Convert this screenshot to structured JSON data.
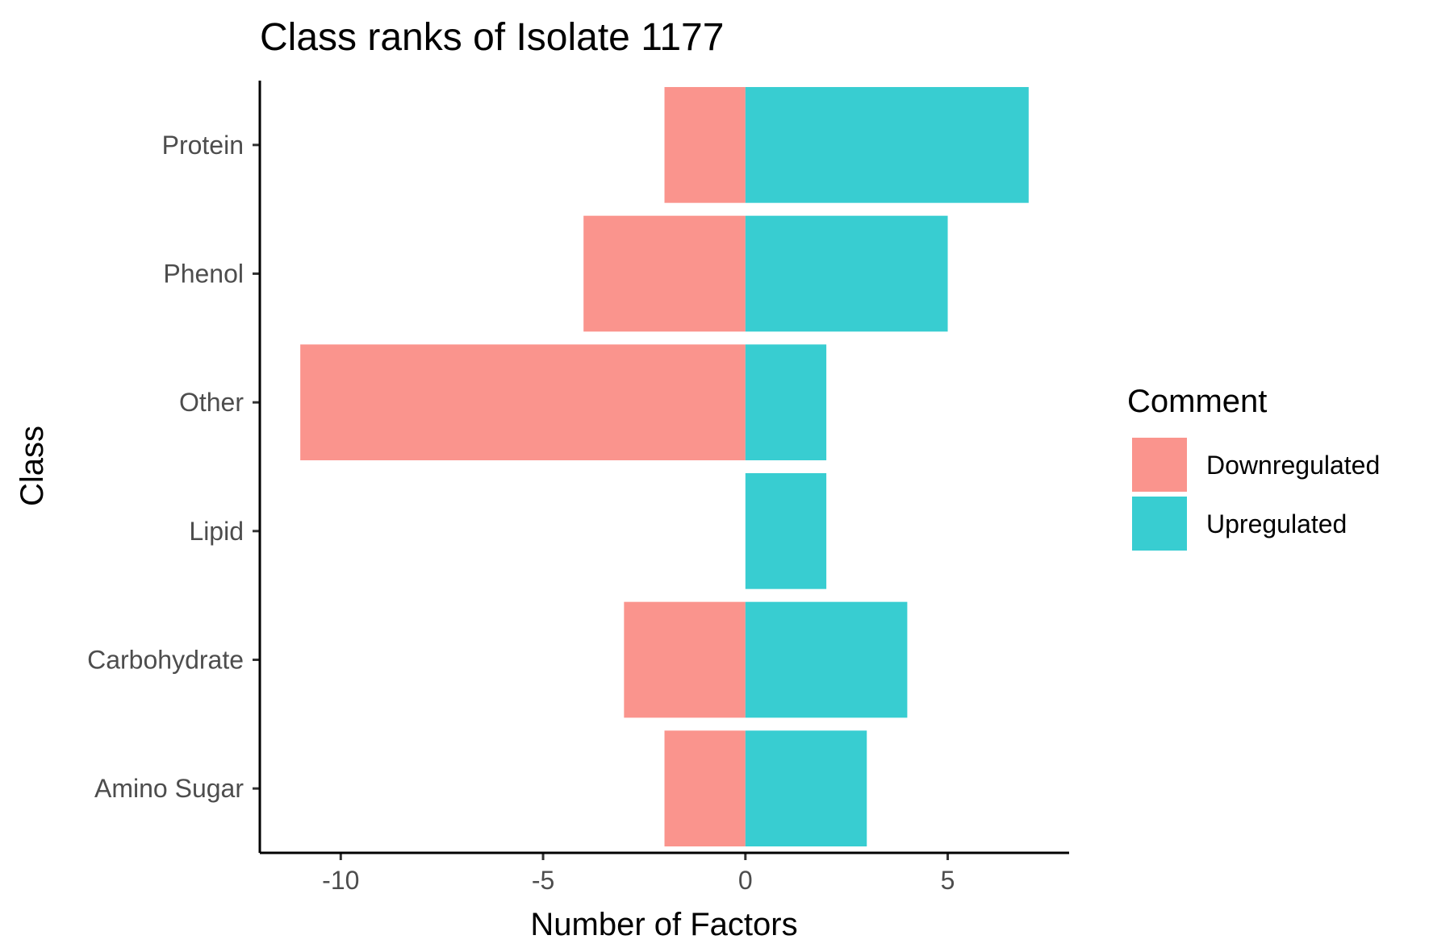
{
  "chart_data": {
    "type": "bar",
    "orientation": "horizontal",
    "stacked": "diverging",
    "title": "Class ranks of Isolate 1177",
    "xlabel": "Number of Factors",
    "ylabel": "Class",
    "categories": [
      "Amino Sugar",
      "Carbohydrate",
      "Lipid",
      "Other",
      "Phenol",
      "Protein"
    ],
    "series": [
      {
        "name": "Downregulated",
        "color": "#F8766D",
        "values": [
          -2,
          -3,
          0,
          -11,
          -4,
          -2
        ]
      },
      {
        "name": "Upregulated",
        "color": "#00BFC4",
        "values": [
          3,
          4,
          2,
          2,
          5,
          7
        ]
      }
    ],
    "xlim": [
      -12,
      8
    ],
    "xticks": [
      -10,
      -5,
      0,
      5
    ],
    "xtick_labels": [
      "-10",
      "-5",
      "0",
      "5"
    ],
    "grid": false,
    "legend": {
      "title": "Comment",
      "placement": "right",
      "entries": [
        "Downregulated",
        "Upregulated"
      ]
    }
  }
}
